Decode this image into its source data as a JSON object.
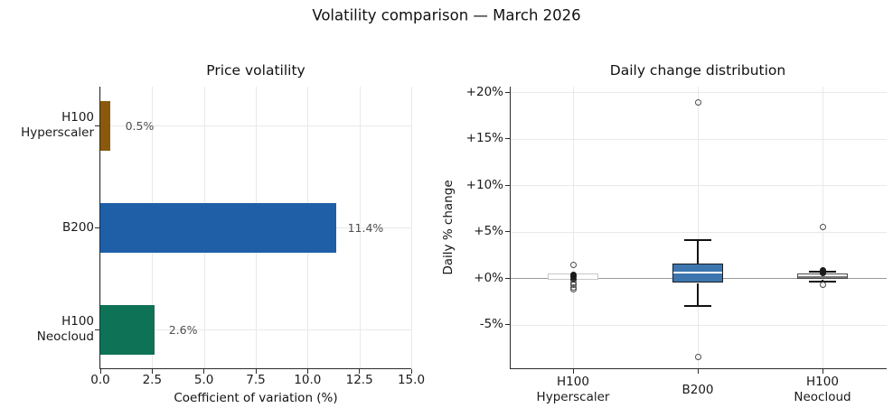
{
  "figure": {
    "suptitle": "Volatility comparison — March 2026",
    "background": "#ffffff",
    "text_color": "#1a1a1a",
    "spine_color": "#2b2b2b",
    "grid_color": "#e9e9e9",
    "zero_line_color": "#9a9a9a",
    "value_label_color": "#4f4f4f"
  },
  "chart_data": [
    {
      "type": "bar",
      "orientation": "horizontal",
      "title": "Price volatility",
      "xlabel": "Coefficient of variation (%)",
      "xlim": [
        0,
        15
      ],
      "xtick_labels": [
        "0.0",
        "2.5",
        "5.0",
        "7.5",
        "10.0",
        "12.5",
        "15.0"
      ],
      "grid": true,
      "categories": [
        "H100\nHyperscaler",
        "B200",
        "H100\nNeocloud"
      ],
      "values": [
        0.5,
        11.4,
        2.6
      ],
      "value_labels": [
        "0.5%",
        "11.4%",
        "2.6%"
      ],
      "bar_colors": [
        "#8a590e",
        "#1f5fa8",
        "#0e7257"
      ]
    },
    {
      "type": "boxplot",
      "title": "Daily change distribution",
      "ylabel": "Daily % change",
      "ylim": [
        -10,
        20.5
      ],
      "yticks": [
        {
          "v": 20,
          "label": "+20%"
        },
        {
          "v": 15,
          "label": "+15%"
        },
        {
          "v": 10,
          "label": "+10%"
        },
        {
          "v": 5,
          "label": "+5%"
        },
        {
          "v": 0,
          "label": "+0%"
        },
        {
          "v": -5,
          "label": "-5%"
        }
      ],
      "zero_line": 0,
      "grid": true,
      "legend": "none",
      "categories": [
        "H100\nHyperscaler",
        "B200",
        "H100\nNeocloud"
      ],
      "series": [
        {
          "name": "H100 Hyperscaler",
          "q1": -0.25,
          "q3": 0.5,
          "median": null,
          "whislo": null,
          "whishi": null,
          "box_fill": "#ffffff",
          "box_edge": "#c8c8c8",
          "median_color": null,
          "fliers_filled": [
            0.35,
            0.1,
            -0.1
          ],
          "fliers_open": [
            1.45,
            -0.5,
            -0.75,
            -1.0,
            -1.2
          ]
        },
        {
          "name": "B200",
          "q1": -0.6,
          "q3": 1.55,
          "median": 0.6,
          "whislo": -3.0,
          "whishi": 4.1,
          "box_fill": "#3d76ae",
          "box_edge": "#1a1d22",
          "median_color": "#ffffff",
          "fliers_filled": [],
          "fliers_open": [
            18.9,
            -8.45
          ]
        },
        {
          "name": "H100 Neocloud",
          "q1": -0.15,
          "q3": 0.45,
          "median": 0.05,
          "whislo": -0.4,
          "whishi": 0.7,
          "box_fill": "#ffffff",
          "box_edge": "#4a4a4a",
          "median_color": "#777777",
          "fliers_filled": [
            0.8,
            0.5
          ],
          "fliers_open": [
            5.5,
            -0.75
          ]
        }
      ]
    }
  ]
}
